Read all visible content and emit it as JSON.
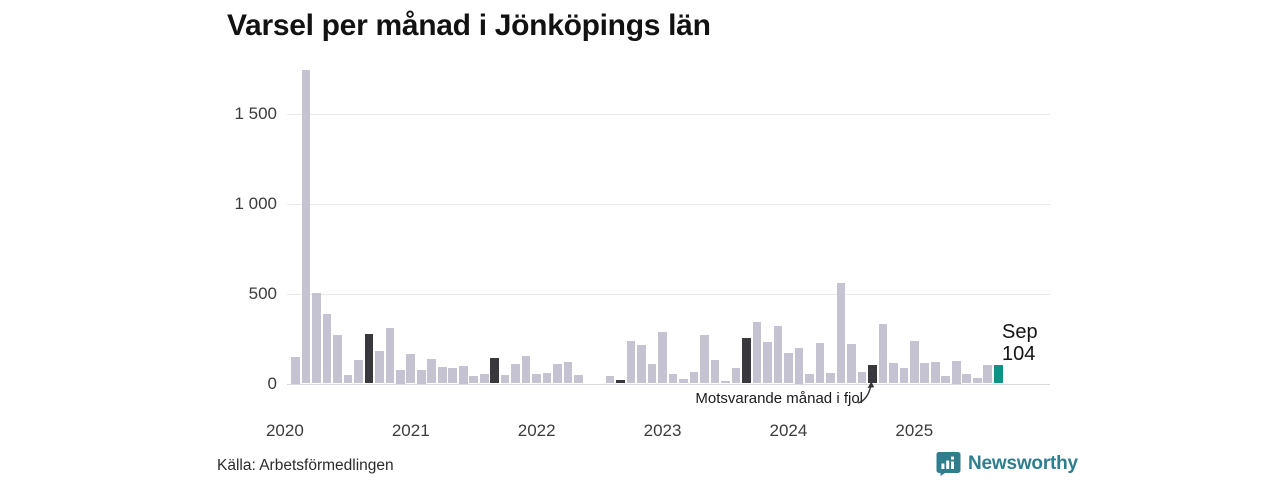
{
  "title": "Varsel per månad i Jönköpings län",
  "annotation": {
    "label": "Motsvarande månad i fjol"
  },
  "last_point": {
    "month": "Sep",
    "value": "104"
  },
  "source": "Källa: Arbetsförmedlingen",
  "brand": {
    "name": "Newsworthy"
  },
  "colors": {
    "bar": "#c5c3d1",
    "bar_last_year": "#39383d",
    "bar_current": "#0f9286",
    "grid": "#e9e9ee",
    "axis_zero": "#d8d8de",
    "brand_teal": "#2e7e8e",
    "tick_text": "#3c3c3c"
  },
  "chart_data": {
    "type": "bar",
    "title": "Varsel per månad i Jönköpings län",
    "xlabel": "",
    "ylabel": "",
    "ylim": [
      0,
      1750
    ],
    "grid": "horizontal",
    "yticks": [
      {
        "value": 0,
        "label": "0"
      },
      {
        "value": 500,
        "label": "500"
      },
      {
        "value": 1000,
        "label": "1 000"
      },
      {
        "value": 1500,
        "label": "1 500"
      }
    ],
    "year_labels": [
      {
        "label": "2020",
        "month_index": 0
      },
      {
        "label": "2021",
        "month_index": 12
      },
      {
        "label": "2022",
        "month_index": 24
      },
      {
        "label": "2023",
        "month_index": 36
      },
      {
        "label": "2024",
        "month_index": 48
      },
      {
        "label": "2025",
        "month_index": 60
      }
    ],
    "series_note": "t: fjol = same month previous years (dark), current = latest month (teal)",
    "months": [
      {
        "m": "2020-01",
        "v": 0
      },
      {
        "m": "2020-02",
        "v": 150
      },
      {
        "m": "2020-03",
        "v": 1740
      },
      {
        "m": "2020-04",
        "v": 505
      },
      {
        "m": "2020-05",
        "v": 385
      },
      {
        "m": "2020-06",
        "v": 272
      },
      {
        "m": "2020-07",
        "v": 48
      },
      {
        "m": "2020-08",
        "v": 128
      },
      {
        "m": "2020-09",
        "v": 274,
        "t": "fjol"
      },
      {
        "m": "2020-10",
        "v": 183
      },
      {
        "m": "2020-11",
        "v": 310
      },
      {
        "m": "2020-12",
        "v": 75
      },
      {
        "m": "2021-01",
        "v": 166
      },
      {
        "m": "2021-02",
        "v": 75
      },
      {
        "m": "2021-03",
        "v": 136
      },
      {
        "m": "2021-04",
        "v": 92
      },
      {
        "m": "2021-05",
        "v": 86
      },
      {
        "m": "2021-06",
        "v": 100
      },
      {
        "m": "2021-07",
        "v": 40
      },
      {
        "m": "2021-08",
        "v": 52
      },
      {
        "m": "2021-09",
        "v": 140,
        "t": "fjol"
      },
      {
        "m": "2021-10",
        "v": 48
      },
      {
        "m": "2021-11",
        "v": 106
      },
      {
        "m": "2021-12",
        "v": 155
      },
      {
        "m": "2022-01",
        "v": 55
      },
      {
        "m": "2022-02",
        "v": 60
      },
      {
        "m": "2022-03",
        "v": 109
      },
      {
        "m": "2022-04",
        "v": 117
      },
      {
        "m": "2022-05",
        "v": 45
      },
      {
        "m": "2022-06",
        "v": 0
      },
      {
        "m": "2022-07",
        "v": 0
      },
      {
        "m": "2022-08",
        "v": 42
      },
      {
        "m": "2022-09",
        "v": 21,
        "t": "fjol"
      },
      {
        "m": "2022-10",
        "v": 234
      },
      {
        "m": "2022-11",
        "v": 216
      },
      {
        "m": "2022-12",
        "v": 111
      },
      {
        "m": "2023-01",
        "v": 286
      },
      {
        "m": "2023-02",
        "v": 53
      },
      {
        "m": "2023-03",
        "v": 23
      },
      {
        "m": "2023-04",
        "v": 66
      },
      {
        "m": "2023-05",
        "v": 270
      },
      {
        "m": "2023-06",
        "v": 131
      },
      {
        "m": "2023-07",
        "v": 13
      },
      {
        "m": "2023-08",
        "v": 85
      },
      {
        "m": "2023-09",
        "v": 252,
        "t": "fjol"
      },
      {
        "m": "2023-10",
        "v": 339
      },
      {
        "m": "2023-11",
        "v": 233
      },
      {
        "m": "2023-12",
        "v": 320
      },
      {
        "m": "2024-01",
        "v": 170
      },
      {
        "m": "2024-02",
        "v": 200
      },
      {
        "m": "2024-03",
        "v": 51
      },
      {
        "m": "2024-04",
        "v": 224
      },
      {
        "m": "2024-05",
        "v": 57
      },
      {
        "m": "2024-06",
        "v": 558
      },
      {
        "m": "2024-07",
        "v": 220
      },
      {
        "m": "2024-08",
        "v": 65
      },
      {
        "m": "2024-09",
        "v": 103,
        "t": "fjol",
        "annotated": true
      },
      {
        "m": "2024-10",
        "v": 330
      },
      {
        "m": "2024-11",
        "v": 112
      },
      {
        "m": "2024-12",
        "v": 88
      },
      {
        "m": "2025-01",
        "v": 237
      },
      {
        "m": "2025-02",
        "v": 113
      },
      {
        "m": "2025-03",
        "v": 118
      },
      {
        "m": "2025-04",
        "v": 43
      },
      {
        "m": "2025-05",
        "v": 125
      },
      {
        "m": "2025-06",
        "v": 51
      },
      {
        "m": "2025-07",
        "v": 29
      },
      {
        "m": "2025-08",
        "v": 103
      },
      {
        "m": "2025-09",
        "v": 104,
        "t": "current"
      }
    ]
  }
}
